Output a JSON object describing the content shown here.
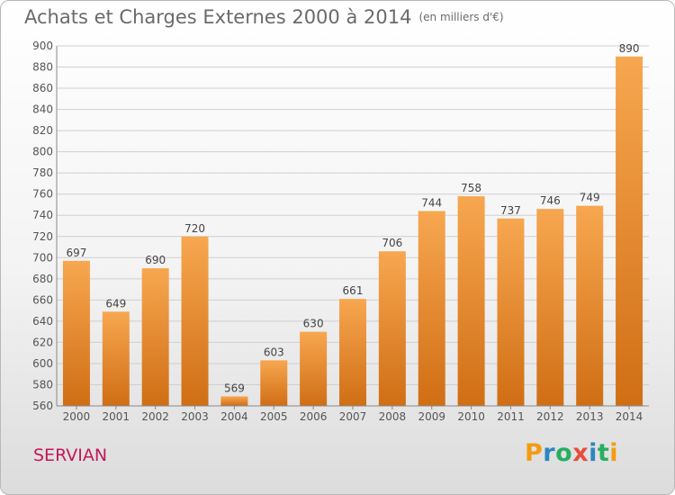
{
  "title": "Achats et Charges Externes 2000 à 2014",
  "subtitle": "(en milliers d'€)",
  "location": "SERVIAN",
  "logo": {
    "text": "Proxiti",
    "letters": [
      "P",
      "r",
      "o",
      "x",
      "i",
      "t",
      "i"
    ],
    "colors": [
      "#f39c12",
      "#2e86c1",
      "#27ae60",
      "#e74c3c",
      "#2e86c1",
      "#27ae60",
      "#f39c12"
    ]
  },
  "chart_data": {
    "type": "bar",
    "categories": [
      "2000",
      "2001",
      "2002",
      "2003",
      "2004",
      "2005",
      "2006",
      "2007",
      "2008",
      "2009",
      "2010",
      "2011",
      "2012",
      "2013",
      "2014"
    ],
    "values": [
      697,
      649,
      690,
      720,
      569,
      603,
      630,
      661,
      706,
      744,
      758,
      737,
      746,
      749,
      890
    ],
    "ylim": [
      560,
      900
    ],
    "yticks": [
      560,
      580,
      600,
      620,
      640,
      660,
      680,
      700,
      720,
      740,
      760,
      780,
      800,
      820,
      840,
      860,
      880,
      900
    ],
    "grid": true,
    "bar_color": "#e8892e",
    "data_labels": true
  }
}
